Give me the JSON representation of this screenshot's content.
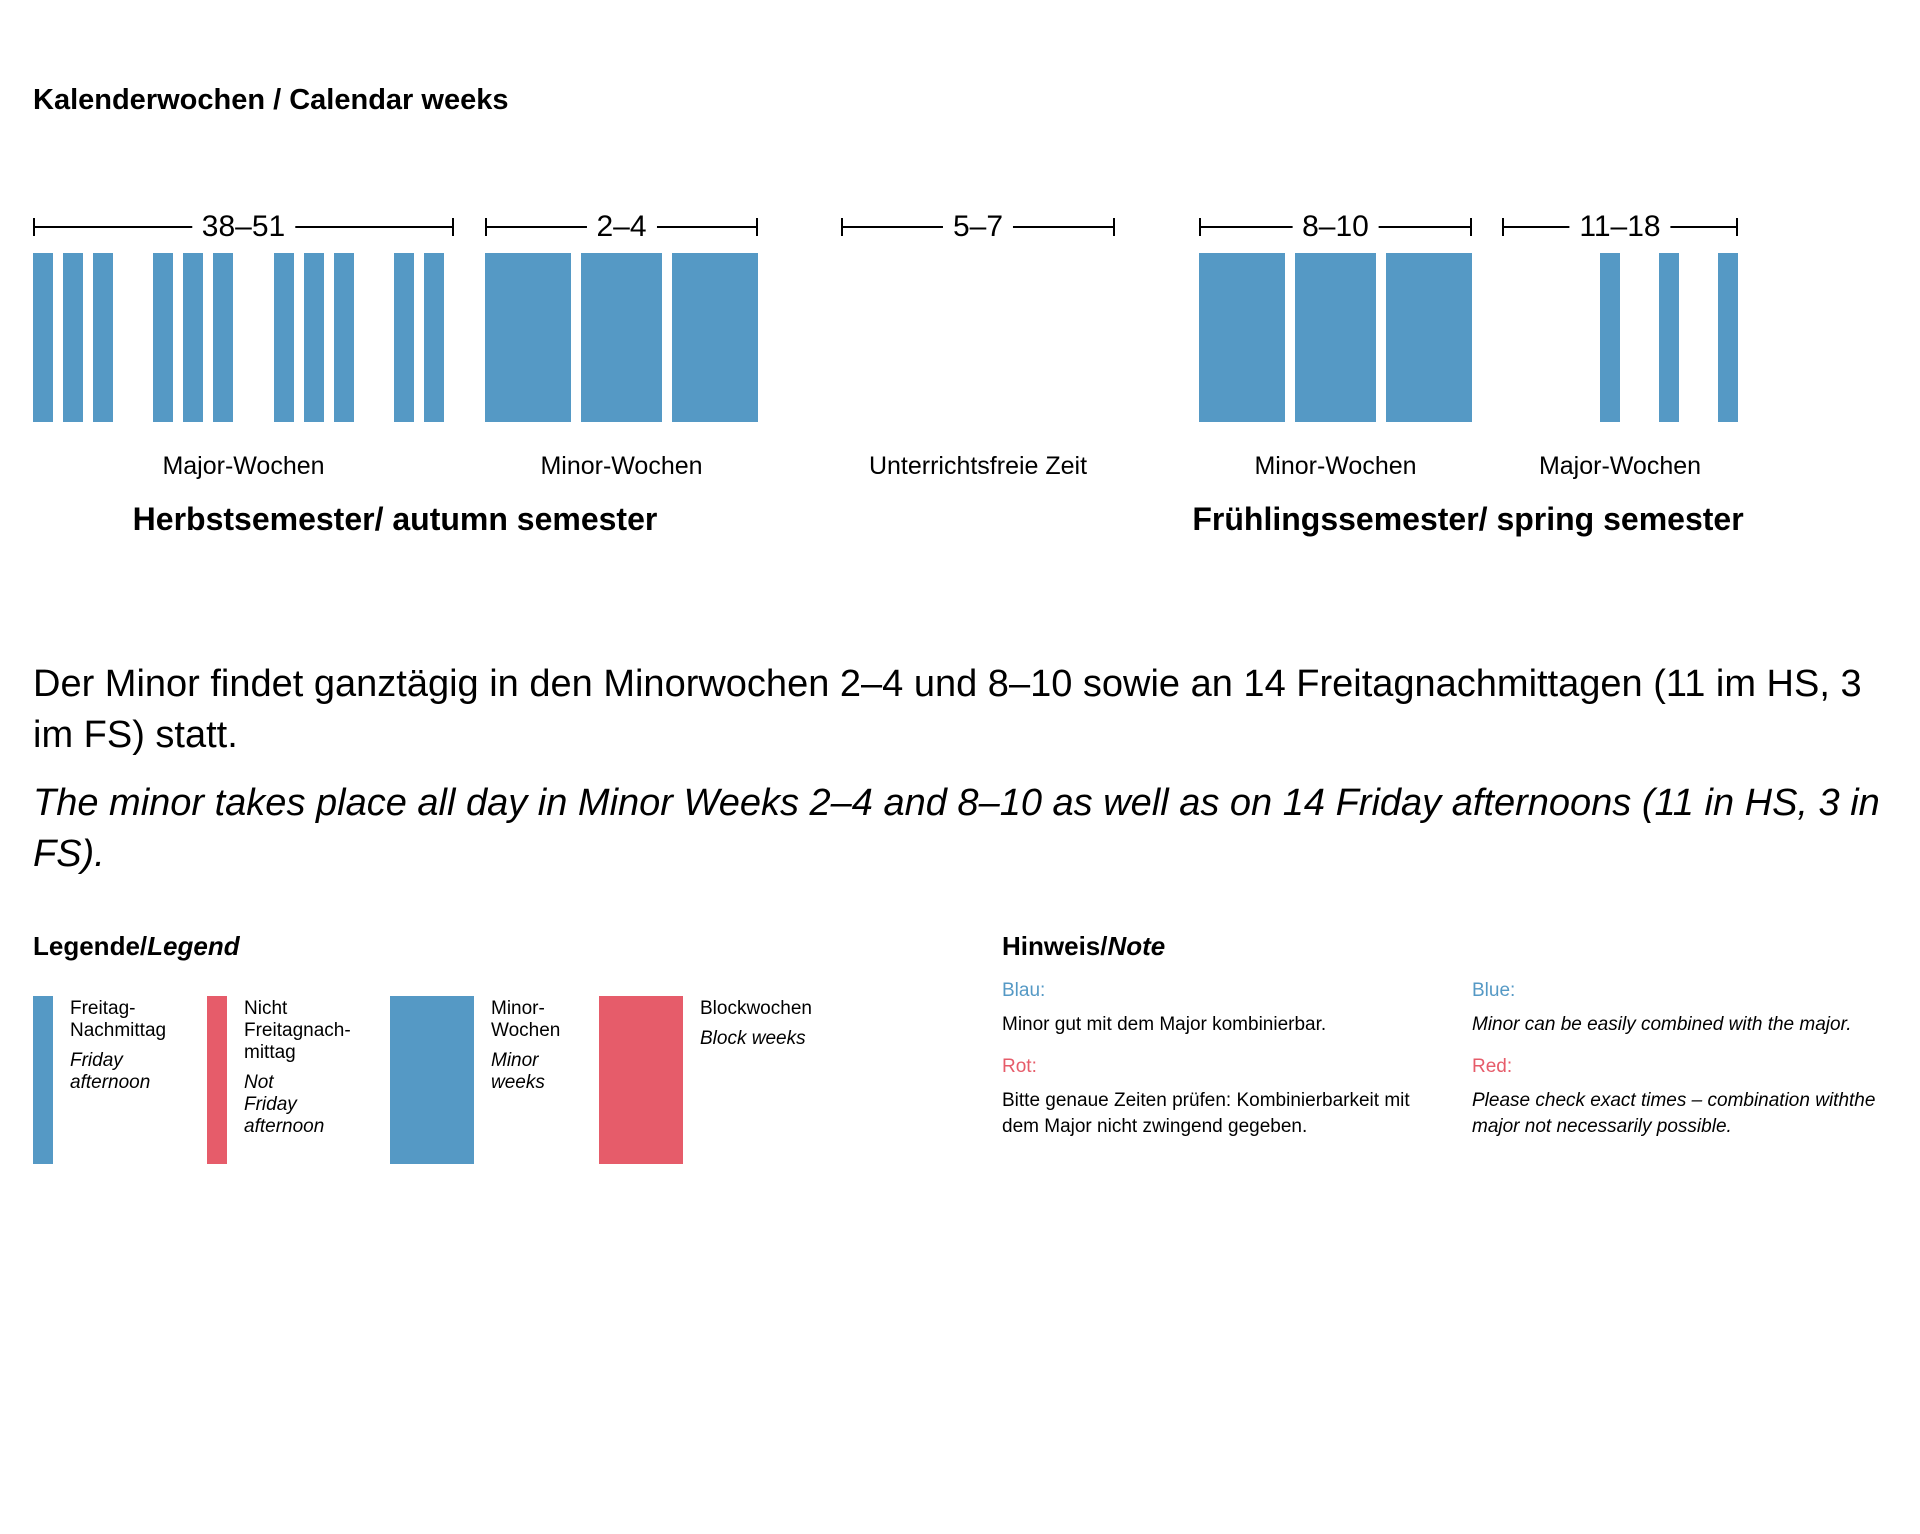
{
  "title": "Kalenderwochen / Calendar weeks",
  "colors": {
    "blue": "#5599c5",
    "red": "#e65c6a"
  },
  "chart_data": {
    "type": "timeline",
    "segments": [
      {
        "range": "38–51",
        "label": "Major-Wochen",
        "weeks": [
          38,
          39,
          40,
          41,
          42,
          43,
          44,
          45,
          46,
          47,
          48,
          49,
          50,
          51
        ],
        "bars": [
          38,
          39,
          40,
          42,
          43,
          44,
          46,
          47,
          48,
          50,
          51
        ],
        "bar_kind": "friday-afternoon",
        "color": "blue"
      },
      {
        "range": "2–4",
        "label": "Minor-Wochen",
        "weeks": [
          2,
          3,
          4
        ],
        "bars": [
          2,
          3,
          4
        ],
        "bar_kind": "minor-week",
        "color": "blue"
      },
      {
        "range": "5–7",
        "label": "Unterrichtsfreie Zeit",
        "weeks": [
          5,
          6,
          7
        ],
        "bars": [],
        "bar_kind": "none",
        "color": "blue"
      },
      {
        "range": "8–10",
        "label": "Minor-Wochen",
        "weeks": [
          8,
          9,
          10
        ],
        "bars": [
          8,
          9,
          10
        ],
        "bar_kind": "minor-week",
        "color": "blue"
      },
      {
        "range": "11–18",
        "label": "Major-Wochen",
        "weeks": [
          11,
          12,
          13,
          14,
          15,
          16,
          17,
          18
        ],
        "bars": [
          14,
          16,
          18
        ],
        "bar_kind": "friday-afternoon",
        "color": "blue"
      }
    ],
    "semesters": [
      {
        "label": "Herbstsemester/ autumn semester"
      },
      {
        "label": "Frühlingssemester/ spring semester"
      }
    ]
  },
  "description_de": "Der Minor findet ganztägig in den Minorwochen 2–4 und 8–10 sowie an 14 Freitagnachmittagen (11 im HS, 3 im FS) statt.",
  "description_en": "The minor takes place all day in Minor Weeks 2–4 and 8–10 as well as on 14 Friday afternoons (11 in HS, 3 in FS).",
  "legend": {
    "heading_de": "Legende/",
    "heading_en": "Legend",
    "items": [
      {
        "de": "Freitag-\nNachmittag",
        "en": "Friday\nafternoon",
        "color": "blue"
      },
      {
        "de": "Nicht\nFreitagnach-\nmittag",
        "en": "Not\nFriday\nafternoon",
        "color": "red"
      },
      {
        "de": "Minor-\nWochen",
        "en": "Minor\nweeks",
        "color": "blue"
      },
      {
        "de": "Blockwochen",
        "en": "Block weeks",
        "color": "red"
      }
    ]
  },
  "note": {
    "heading_de": "Hinweis/",
    "heading_en": "Note",
    "blue_label_de": "Blau:",
    "blue_text_de": "Minor gut mit dem Major kombinierbar.",
    "red_label_de": "Rot:",
    "red_text_de": "Bitte genaue Zeiten prüfen: Kombinierbarkeit mit dem Major nicht zwingend gegeben.",
    "blue_label_en": "Blue:",
    "blue_text_en": "Minor can be easily combined with the major.",
    "red_label_en": "Red:",
    "red_text_en": "Please check exact times – combination withthe major not necessarily possible."
  }
}
